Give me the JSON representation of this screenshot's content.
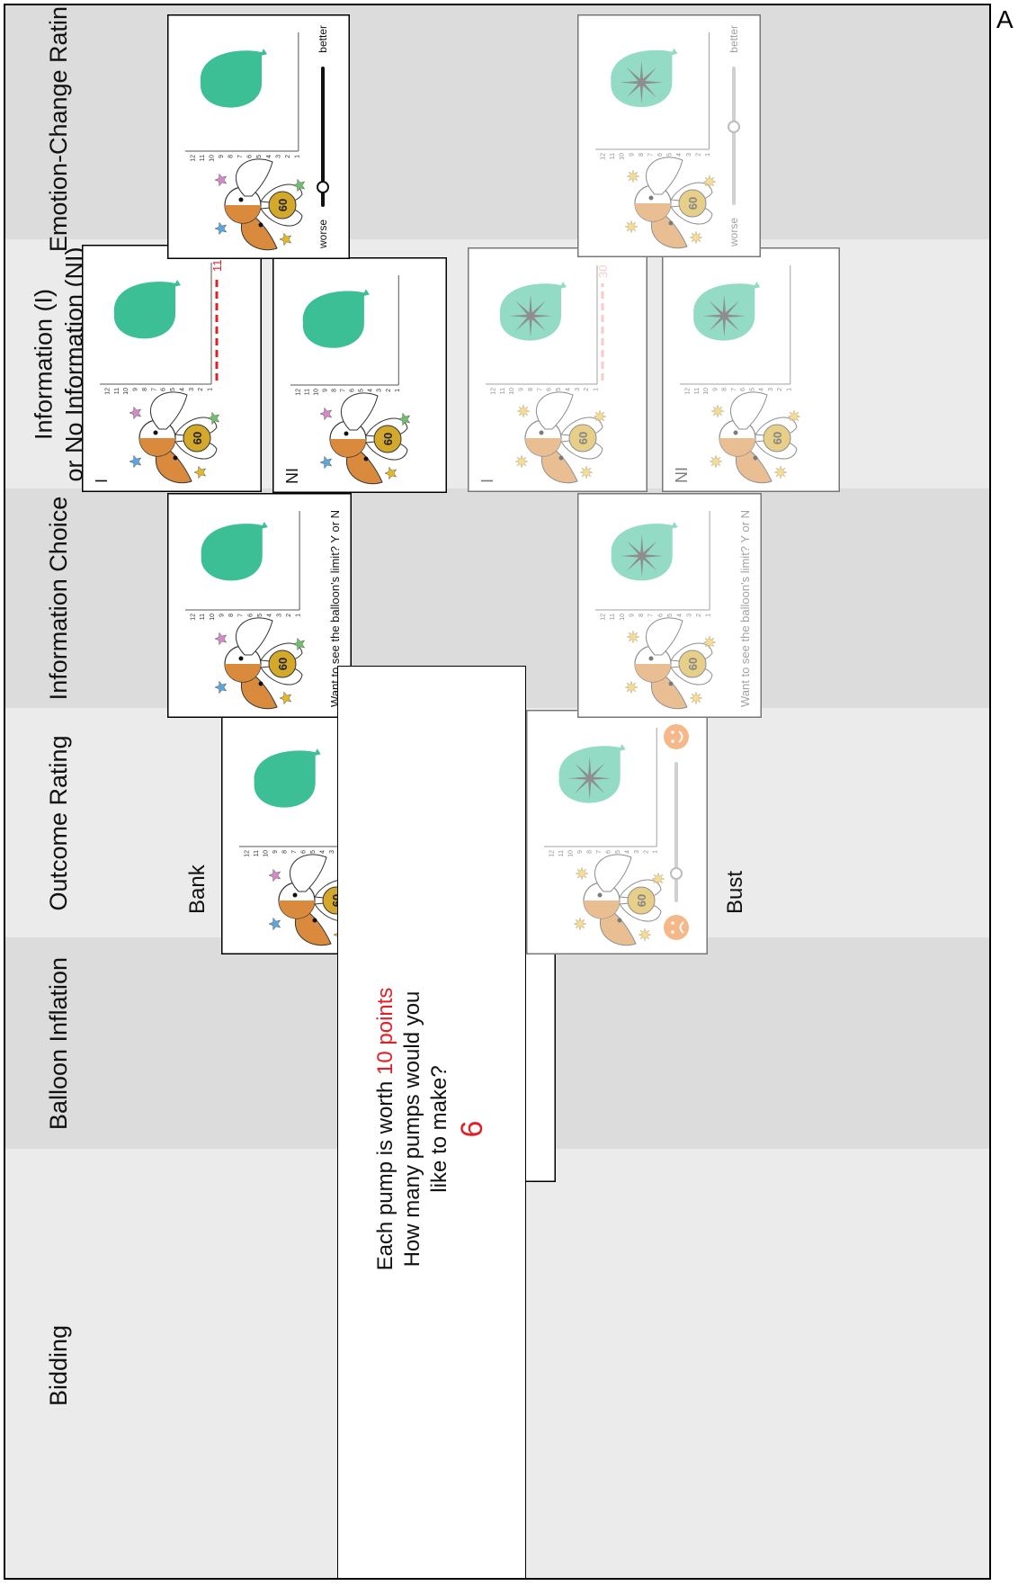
{
  "panel_label": "A",
  "columns": [
    {
      "id": "bidding",
      "lines": [
        "Bidding"
      ]
    },
    {
      "id": "inflation",
      "lines": [
        "Balloon Inflation"
      ]
    },
    {
      "id": "outcome",
      "lines": [
        "Outcome Rating"
      ]
    },
    {
      "id": "choice",
      "lines": [
        "Information Choice"
      ]
    },
    {
      "id": "info",
      "lines": [
        "Information (I)",
        "or No Information (NI)"
      ]
    },
    {
      "id": "emotion",
      "lines": [
        "Emotion-Change Rating"
      ]
    }
  ],
  "bidding": {
    "text_prefix": "Each pump is worth ",
    "points": "10 points",
    "line2": "How many pumps would you",
    "line3": "like to make?",
    "answer": "6"
  },
  "pump_value": "60",
  "y_axis_ticks": [
    "12",
    "11",
    "10",
    "9",
    "8",
    "7",
    "6",
    "5",
    "4",
    "3",
    "2",
    "1"
  ],
  "labels": {
    "bank": "Bank",
    "bust": "Bust",
    "info": "I",
    "no_info": "NI"
  },
  "choice_prompt": "Want to see the balloon's limit? Y or N",
  "info_limits": {
    "bank": "110",
    "bust": "30"
  },
  "emotion_scale": {
    "low": "worse",
    "high": "better"
  },
  "colors": {
    "balloon": "#3cbf95",
    "limit_line": "#e31e24",
    "smiley": "#f07d2a",
    "points": "#e31e24",
    "body": "#d98a3c",
    "pump_red": "#8b1a1a"
  }
}
